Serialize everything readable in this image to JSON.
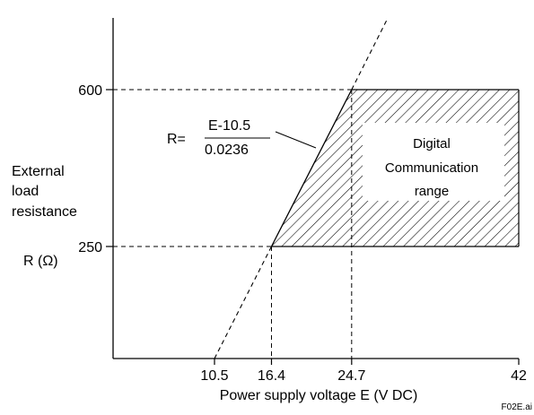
{
  "chart_data": {
    "type": "line",
    "xlabel": "Power supply voltage  E (V DC)",
    "ylabel_lines": [
      "External",
      "load",
      "resistance"
    ],
    "ylabel_symbol": "R (Ω)",
    "x_ticks": [
      "10.5",
      "16.4",
      "24.7",
      "42"
    ],
    "y_ticks": [
      "600",
      "250"
    ],
    "xlim": [
      0,
      42
    ],
    "ylim": [
      0,
      760
    ],
    "series": [
      {
        "formula": "R = (E - 10.5) / 0.0236",
        "x": [
          10.5,
          16.4,
          24.7,
          28.4
        ],
        "y": [
          0,
          250,
          600,
          758
        ]
      }
    ],
    "reference_lines": [
      {
        "axis": "y",
        "value": 600,
        "to_x": 24.7
      },
      {
        "axis": "y",
        "value": 250,
        "to_x": 16.4
      },
      {
        "axis": "x",
        "value": 16.4,
        "to_y": 250
      },
      {
        "axis": "x",
        "value": 24.7,
        "to_y": 600
      }
    ],
    "region": {
      "x_min": 16.4,
      "x_max": 42,
      "y_min": 250,
      "y_max": 600,
      "lower_boundary": "R = (E - 10.5) / 0.0236"
    },
    "region_label_lines": [
      "Digital",
      "Communication",
      "range"
    ],
    "formula_label": {
      "prefix": "R=",
      "numerator": "E-10.5",
      "denominator": "0.0236"
    },
    "figure_id": "F02E.ai",
    "colors": {
      "line": "#000000",
      "hatch": "#000000",
      "background": "#ffffff"
    },
    "grid": false
  }
}
